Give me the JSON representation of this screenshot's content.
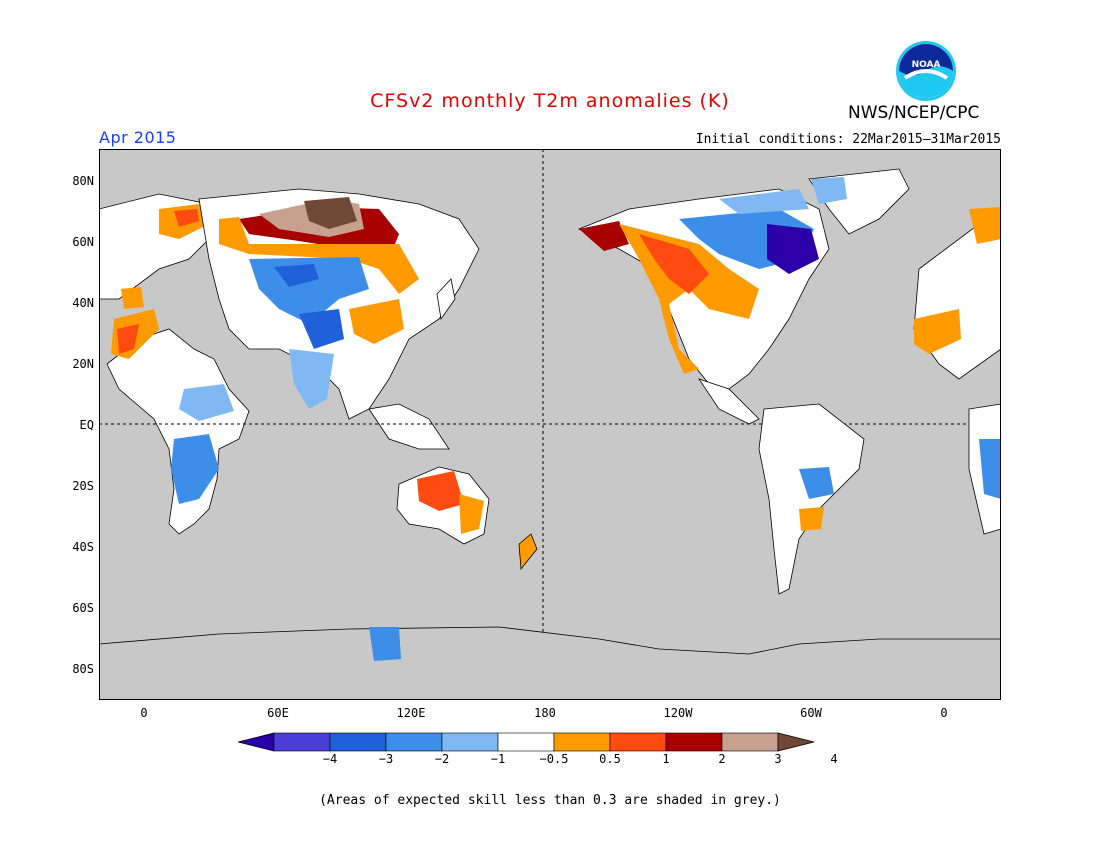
{
  "title": "CFSv2 monthly T2m anomalies (K)",
  "org": "NWS/NCEP/CPC",
  "month": "Apr 2015",
  "initial_conditions": "Initial conditions: 22Mar2015–31Mar2015",
  "logo_text": "NOAA",
  "lat_labels": [
    "80N",
    "60N",
    "40N",
    "20N",
    "EQ",
    "20S",
    "40S",
    "60S",
    "80S"
  ],
  "lon_labels": [
    "0",
    "60E",
    "120E",
    "180",
    "120W",
    "60W",
    "0"
  ],
  "colorbar": {
    "ticks": [
      "−4",
      "−3",
      "−2",
      "−1",
      "−0.5",
      "0.5",
      "1",
      "2",
      "3",
      "4"
    ],
    "colors": [
      "#2c00a8",
      "#4a3fd4",
      "#2060d8",
      "#3d8ee8",
      "#80b8f4",
      "#ffffff",
      "#ff9a00",
      "#ff4a10",
      "#a80000",
      "#c8a090",
      "#704838"
    ]
  },
  "note": "(Areas of expected skill less than 0.3 are shaded in grey.)",
  "colors": {
    "title": "#e60000",
    "month": "#1a3cff",
    "ocean": "#c8c8c8"
  }
}
